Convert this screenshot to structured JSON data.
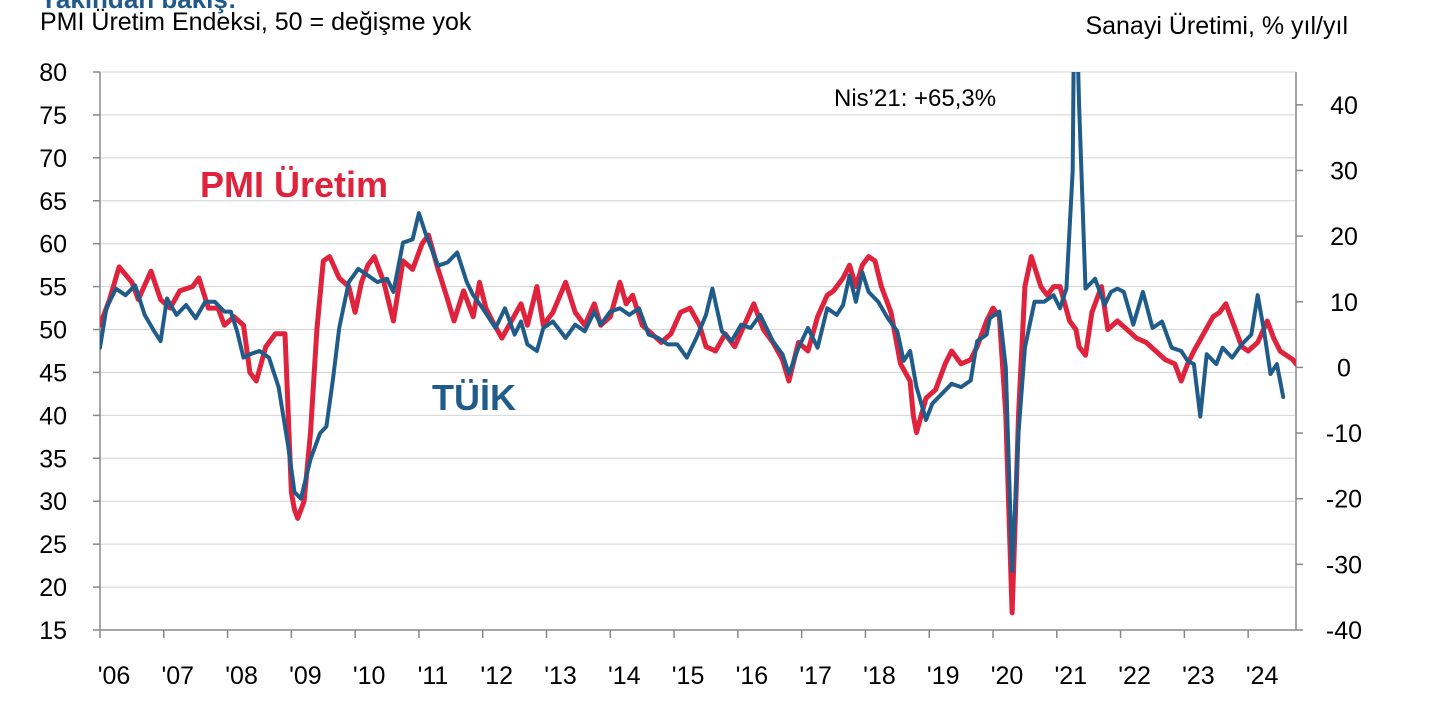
{
  "chart_data": {
    "type": "line",
    "title": "",
    "top_title_fragment": "Yakından bakış:",
    "left_axis_title": "PMI Üretim Endeksi, 50 = değişme yok",
    "right_axis_title": "Sanayi Üretimi, % yıl/yıl",
    "left_ylim": [
      15,
      80
    ],
    "right_ylim": [
      -40,
      45
    ],
    "left_ticks": [
      "80",
      "75",
      "70",
      "65",
      "60",
      "55",
      "50",
      "45",
      "40",
      "35",
      "30",
      "25",
      "20",
      "15"
    ],
    "right_ticks": [
      "40",
      "30",
      "20",
      "10",
      "0",
      "-10",
      "-20",
      "-30",
      "-40"
    ],
    "x_ticks": [
      "'06",
      "'07",
      "'08",
      "'09",
      "'10",
      "'11",
      "'12",
      "'13",
      "'14",
      "'15",
      "'16",
      "'17",
      "'18",
      "'19",
      "'20",
      "'21",
      "'22",
      "'23",
      "'24"
    ],
    "grid": true,
    "annotation": "Nis’21: +65,3%",
    "series": [
      {
        "name": "PMI Üretim",
        "axis": "left",
        "color": "#e0233c",
        "points": [
          [
            2006.0,
            50.5
          ],
          [
            2006.15,
            53.5
          ],
          [
            2006.3,
            57.3
          ],
          [
            2006.5,
            55.5
          ],
          [
            2006.6,
            53.5
          ],
          [
            2006.8,
            56.8
          ],
          [
            2006.95,
            53.5
          ],
          [
            2007.1,
            52.5
          ],
          [
            2007.25,
            54.5
          ],
          [
            2007.45,
            55.0
          ],
          [
            2007.55,
            56.0
          ],
          [
            2007.7,
            52.5
          ],
          [
            2007.85,
            52.5
          ],
          [
            2007.95,
            50.5
          ],
          [
            2008.1,
            51.5
          ],
          [
            2008.25,
            50.5
          ],
          [
            2008.35,
            45.0
          ],
          [
            2008.45,
            44.0
          ],
          [
            2008.6,
            48.0
          ],
          [
            2008.75,
            49.5
          ],
          [
            2008.9,
            49.5
          ],
          [
            2009.0,
            31.0
          ],
          [
            2009.05,
            29.0
          ],
          [
            2009.1,
            28.0
          ],
          [
            2009.2,
            30.0
          ],
          [
            2009.3,
            38.0
          ],
          [
            2009.4,
            50.0
          ],
          [
            2009.5,
            58.0
          ],
          [
            2009.6,
            58.5
          ],
          [
            2009.75,
            56.0
          ],
          [
            2009.9,
            55.0
          ],
          [
            2010.0,
            52.0
          ],
          [
            2010.1,
            55.5
          ],
          [
            2010.2,
            57.5
          ],
          [
            2010.3,
            58.5
          ],
          [
            2010.45,
            55.5
          ],
          [
            2010.6,
            51.0
          ],
          [
            2010.75,
            58.0
          ],
          [
            2010.9,
            57.0
          ],
          [
            2011.05,
            60.0
          ],
          [
            2011.15,
            61.0
          ],
          [
            2011.3,
            57.0
          ],
          [
            2011.45,
            53.5
          ],
          [
            2011.55,
            51.0
          ],
          [
            2011.7,
            54.5
          ],
          [
            2011.85,
            51.5
          ],
          [
            2011.95,
            55.5
          ],
          [
            2012.05,
            52.5
          ],
          [
            2012.15,
            51.0
          ],
          [
            2012.3,
            49.0
          ],
          [
            2012.45,
            51.0
          ],
          [
            2012.6,
            53.0
          ],
          [
            2012.7,
            50.5
          ],
          [
            2012.85,
            55.0
          ],
          [
            2012.95,
            50.5
          ],
          [
            2013.1,
            52.0
          ],
          [
            2013.3,
            55.5
          ],
          [
            2013.45,
            52.0
          ],
          [
            2013.6,
            50.5
          ],
          [
            2013.75,
            53.0
          ],
          [
            2013.85,
            50.5
          ],
          [
            2014.0,
            51.5
          ],
          [
            2014.15,
            55.5
          ],
          [
            2014.25,
            53.0
          ],
          [
            2014.35,
            54.0
          ],
          [
            2014.5,
            50.5
          ],
          [
            2014.65,
            49.5
          ],
          [
            2014.8,
            48.5
          ],
          [
            2014.95,
            49.5
          ],
          [
            2015.1,
            52.0
          ],
          [
            2015.25,
            52.5
          ],
          [
            2015.4,
            50.5
          ],
          [
            2015.5,
            48.0
          ],
          [
            2015.65,
            47.5
          ],
          [
            2015.8,
            49.5
          ],
          [
            2015.95,
            48.0
          ],
          [
            2016.1,
            50.5
          ],
          [
            2016.25,
            53.0
          ],
          [
            2016.4,
            50.0
          ],
          [
            2016.55,
            48.5
          ],
          [
            2016.7,
            46.5
          ],
          [
            2016.8,
            44.0
          ],
          [
            2016.95,
            48.5
          ],
          [
            2017.1,
            47.5
          ],
          [
            2017.25,
            51.5
          ],
          [
            2017.4,
            54.0
          ],
          [
            2017.5,
            54.5
          ],
          [
            2017.65,
            56.0
          ],
          [
            2017.75,
            57.5
          ],
          [
            2017.85,
            55.0
          ],
          [
            2017.95,
            57.5
          ],
          [
            2018.05,
            58.5
          ],
          [
            2018.15,
            58.0
          ],
          [
            2018.25,
            55.0
          ],
          [
            2018.4,
            52.0
          ],
          [
            2018.55,
            46.0
          ],
          [
            2018.7,
            44.0
          ],
          [
            2018.75,
            40.0
          ],
          [
            2018.8,
            38.0
          ],
          [
            2018.95,
            42.0
          ],
          [
            2019.1,
            43.0
          ],
          [
            2019.25,
            46.0
          ],
          [
            2019.35,
            47.5
          ],
          [
            2019.5,
            46.0
          ],
          [
            2019.65,
            46.5
          ],
          [
            2019.75,
            48.0
          ],
          [
            2019.9,
            51.0
          ],
          [
            2020.0,
            52.5
          ],
          [
            2020.1,
            51.5
          ],
          [
            2020.2,
            40.0
          ],
          [
            2020.3,
            17.0
          ],
          [
            2020.35,
            28.0
          ],
          [
            2020.4,
            40.0
          ],
          [
            2020.5,
            55.0
          ],
          [
            2020.6,
            58.5
          ],
          [
            2020.75,
            55.0
          ],
          [
            2020.85,
            54.0
          ],
          [
            2020.95,
            55.0
          ],
          [
            2021.05,
            55.0
          ],
          [
            2021.2,
            51.0
          ],
          [
            2021.3,
            50.0
          ],
          [
            2021.35,
            48.0
          ],
          [
            2021.45,
            47.0
          ],
          [
            2021.55,
            52.0
          ],
          [
            2021.7,
            55.0
          ],
          [
            2021.8,
            50.0
          ],
          [
            2021.95,
            51.0
          ],
          [
            2022.1,
            50.0
          ],
          [
            2022.25,
            49.0
          ],
          [
            2022.4,
            48.5
          ],
          [
            2022.55,
            47.5
          ],
          [
            2022.7,
            46.5
          ],
          [
            2022.85,
            46.0
          ],
          [
            2022.95,
            44.0
          ],
          [
            2023.05,
            46.0
          ],
          [
            2023.15,
            47.5
          ],
          [
            2023.3,
            49.5
          ],
          [
            2023.45,
            51.5
          ],
          [
            2023.55,
            52.0
          ],
          [
            2023.65,
            53.0
          ],
          [
            2023.8,
            50.0
          ],
          [
            2023.9,
            48.0
          ],
          [
            2024.0,
            47.5
          ],
          [
            2024.15,
            48.5
          ],
          [
            2024.3,
            51.0
          ],
          [
            2024.4,
            49.0
          ],
          [
            2024.5,
            47.5
          ],
          [
            2024.6,
            47.0
          ],
          [
            2024.7,
            46.5
          ],
          [
            2024.75,
            46.0
          ]
        ]
      },
      {
        "name": "TÜİK",
        "axis": "right",
        "color": "#205c8a",
        "points": [
          [
            2006.0,
            3.0
          ],
          [
            2006.1,
            9.0
          ],
          [
            2006.25,
            12.0
          ],
          [
            2006.4,
            11.0
          ],
          [
            2006.55,
            12.5
          ],
          [
            2006.7,
            8.0
          ],
          [
            2006.85,
            5.5
          ],
          [
            2006.95,
            4.0
          ],
          [
            2007.05,
            10.5
          ],
          [
            2007.2,
            8.0
          ],
          [
            2007.35,
            9.5
          ],
          [
            2007.5,
            7.5
          ],
          [
            2007.65,
            10.0
          ],
          [
            2007.8,
            10.0
          ],
          [
            2007.95,
            8.5
          ],
          [
            2008.05,
            8.5
          ],
          [
            2008.15,
            5.5
          ],
          [
            2008.25,
            1.5
          ],
          [
            2008.35,
            2.0
          ],
          [
            2008.5,
            2.5
          ],
          [
            2008.65,
            1.5
          ],
          [
            2008.8,
            -3.0
          ],
          [
            2008.95,
            -12.0
          ],
          [
            2009.05,
            -19.0
          ],
          [
            2009.15,
            -20.0
          ],
          [
            2009.3,
            -14.0
          ],
          [
            2009.45,
            -10.0
          ],
          [
            2009.55,
            -9.0
          ],
          [
            2009.65,
            -2.0
          ],
          [
            2009.75,
            6.0
          ],
          [
            2009.9,
            13.0
          ],
          [
            2010.05,
            15.0
          ],
          [
            2010.2,
            14.0
          ],
          [
            2010.35,
            13.0
          ],
          [
            2010.5,
            13.5
          ],
          [
            2010.6,
            11.5
          ],
          [
            2010.75,
            19.0
          ],
          [
            2010.9,
            19.5
          ],
          [
            2011.0,
            23.5
          ],
          [
            2011.1,
            20.5
          ],
          [
            2011.3,
            15.5
          ],
          [
            2011.45,
            16.0
          ],
          [
            2011.6,
            17.5
          ],
          [
            2011.75,
            13.0
          ],
          [
            2011.85,
            11.0
          ],
          [
            2012.0,
            9.0
          ],
          [
            2012.2,
            6.0
          ],
          [
            2012.35,
            9.0
          ],
          [
            2012.5,
            5.0
          ],
          [
            2012.6,
            7.0
          ],
          [
            2012.7,
            3.5
          ],
          [
            2012.85,
            2.5
          ],
          [
            2012.95,
            6.0
          ],
          [
            2013.1,
            7.0
          ],
          [
            2013.3,
            4.5
          ],
          [
            2013.45,
            6.5
          ],
          [
            2013.6,
            5.5
          ],
          [
            2013.75,
            8.5
          ],
          [
            2013.85,
            6.5
          ],
          [
            2014.0,
            8.5
          ],
          [
            2014.15,
            9.0
          ],
          [
            2014.3,
            8.0
          ],
          [
            2014.45,
            9.0
          ],
          [
            2014.6,
            5.0
          ],
          [
            2014.75,
            4.5
          ],
          [
            2014.9,
            3.5
          ],
          [
            2015.05,
            3.5
          ],
          [
            2015.2,
            1.5
          ],
          [
            2015.35,
            4.5
          ],
          [
            2015.5,
            8.0
          ],
          [
            2015.6,
            12.0
          ],
          [
            2015.75,
            5.5
          ],
          [
            2015.9,
            4.0
          ],
          [
            2016.05,
            6.5
          ],
          [
            2016.2,
            6.0
          ],
          [
            2016.35,
            8.0
          ],
          [
            2016.55,
            4.0
          ],
          [
            2016.7,
            2.0
          ],
          [
            2016.8,
            -1.0
          ],
          [
            2016.95,
            3.0
          ],
          [
            2017.1,
            6.0
          ],
          [
            2017.25,
            3.0
          ],
          [
            2017.4,
            9.0
          ],
          [
            2017.55,
            8.0
          ],
          [
            2017.65,
            9.5
          ],
          [
            2017.75,
            14.0
          ],
          [
            2017.85,
            10.0
          ],
          [
            2017.95,
            14.5
          ],
          [
            2018.05,
            11.5
          ],
          [
            2018.2,
            10.0
          ],
          [
            2018.35,
            7.5
          ],
          [
            2018.5,
            5.5
          ],
          [
            2018.6,
            1.0
          ],
          [
            2018.7,
            2.5
          ],
          [
            2018.8,
            -3.0
          ],
          [
            2018.95,
            -8.0
          ],
          [
            2019.05,
            -5.5
          ],
          [
            2019.2,
            -4.0
          ],
          [
            2019.35,
            -2.5
          ],
          [
            2019.5,
            -3.0
          ],
          [
            2019.65,
            -2.0
          ],
          [
            2019.75,
            4.0
          ],
          [
            2019.9,
            5.0
          ],
          [
            2019.95,
            7.5
          ],
          [
            2020.1,
            8.5
          ],
          [
            2020.2,
            0.0
          ],
          [
            2020.3,
            -31.0
          ],
          [
            2020.4,
            -10.0
          ],
          [
            2020.5,
            3.0
          ],
          [
            2020.65,
            10.0
          ],
          [
            2020.8,
            10.0
          ],
          [
            2020.95,
            11.0
          ],
          [
            2021.05,
            9.0
          ],
          [
            2021.15,
            12.0
          ],
          [
            2021.25,
            30.0
          ],
          [
            2021.28,
            65.3
          ],
          [
            2021.35,
            40.0
          ],
          [
            2021.45,
            12.0
          ],
          [
            2021.6,
            13.5
          ],
          [
            2021.75,
            9.5
          ],
          [
            2021.85,
            11.5
          ],
          [
            2021.95,
            12.0
          ],
          [
            2022.05,
            11.5
          ],
          [
            2022.2,
            6.5
          ],
          [
            2022.35,
            11.5
          ],
          [
            2022.5,
            6.0
          ],
          [
            2022.65,
            7.0
          ],
          [
            2022.8,
            3.0
          ],
          [
            2022.95,
            2.5
          ],
          [
            2023.05,
            1.0
          ],
          [
            2023.15,
            0.5
          ],
          [
            2023.25,
            -7.5
          ],
          [
            2023.35,
            2.0
          ],
          [
            2023.5,
            0.5
          ],
          [
            2023.6,
            3.0
          ],
          [
            2023.75,
            1.5
          ],
          [
            2023.9,
            3.5
          ],
          [
            2024.05,
            5.0
          ],
          [
            2024.15,
            11.0
          ],
          [
            2024.25,
            5.5
          ],
          [
            2024.35,
            -1.0
          ],
          [
            2024.45,
            0.5
          ],
          [
            2024.55,
            -4.5
          ]
        ]
      }
    ]
  }
}
